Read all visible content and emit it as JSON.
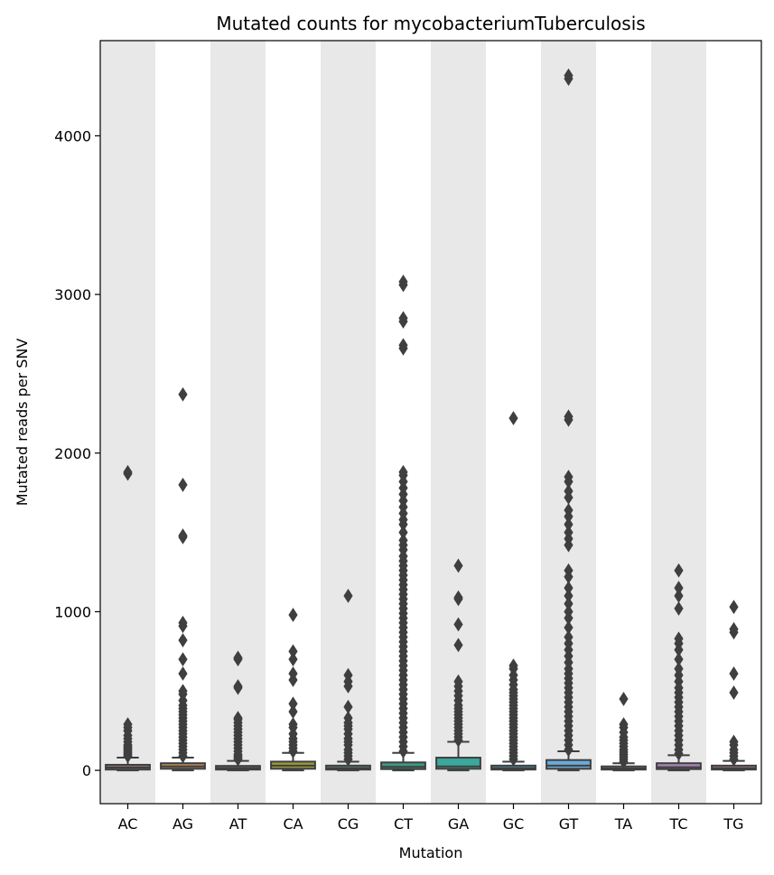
{
  "chart_data": {
    "type": "box",
    "title": "Mutated counts for mycobacteriumTuberculosis",
    "xlabel": "Mutation",
    "ylabel": "Mutated reads per SNV",
    "ylim": [
      -210,
      4600
    ],
    "yticks": [
      0,
      1000,
      2000,
      3000,
      4000
    ],
    "grid": false,
    "alternating_bands": true,
    "band_color": "#e8e8e8",
    "categories": [
      "AC",
      "AG",
      "AT",
      "CA",
      "CG",
      "CT",
      "GA",
      "GC",
      "GT",
      "TA",
      "TC",
      "TG"
    ],
    "series": [
      {
        "category": "AC",
        "color": "#8a7470",
        "min": 0,
        "q1": 5,
        "median": 18,
        "q3": 35,
        "max": 80,
        "outliers": [
          90,
          100,
          110,
          120,
          130,
          140,
          150,
          160,
          180,
          200,
          220,
          250,
          270,
          290,
          1870,
          1880
        ]
      },
      {
        "category": "AG",
        "color": "#b88a5a",
        "min": 0,
        "q1": 10,
        "median": 25,
        "q3": 45,
        "max": 80,
        "outliers": [
          90,
          110,
          130,
          150,
          170,
          190,
          210,
          230,
          250,
          270,
          290,
          310,
          330,
          350,
          370,
          390,
          410,
          440,
          480,
          500,
          610,
          700,
          820,
          910,
          930,
          1470,
          1480,
          1800,
          2370
        ]
      },
      {
        "category": "AT",
        "color": "#7f7f7f",
        "min": 0,
        "q1": 5,
        "median": 15,
        "q3": 28,
        "max": 60,
        "outliers": [
          70,
          80,
          90,
          100,
          120,
          140,
          160,
          180,
          200,
          220,
          240,
          260,
          280,
          300,
          320,
          330,
          520,
          530,
          700,
          710
        ]
      },
      {
        "category": "CA",
        "color": "#9a9a3a",
        "min": 0,
        "q1": 10,
        "median": 30,
        "q3": 55,
        "max": 110,
        "outliers": [
          120,
          140,
          160,
          180,
          200,
          230,
          270,
          290,
          370,
          420,
          570,
          610,
          700,
          750,
          980
        ]
      },
      {
        "category": "CG",
        "color": "#6f8f8a",
        "min": 0,
        "q1": 5,
        "median": 15,
        "q3": 30,
        "max": 55,
        "outliers": [
          70,
          90,
          110,
          130,
          160,
          180,
          200,
          230,
          260,
          280,
          300,
          330,
          400,
          530,
          560,
          600,
          1100
        ]
      },
      {
        "category": "CT",
        "color": "#3a9a84",
        "min": 0,
        "q1": 8,
        "median": 22,
        "q3": 50,
        "max": 110,
        "outliers": [
          120,
          150,
          180,
          210,
          240,
          270,
          300,
          330,
          360,
          390,
          420,
          450,
          480,
          510,
          540,
          570,
          600,
          630,
          660,
          690,
          720,
          750,
          780,
          810,
          840,
          870,
          900,
          930,
          960,
          990,
          1020,
          1050,
          1080,
          1110,
          1140,
          1170,
          1200,
          1230,
          1260,
          1290,
          1320,
          1350,
          1390,
          1420,
          1450,
          1500,
          1550,
          1580,
          1620,
          1660,
          1700,
          1740,
          1780,
          1820,
          1860,
          1880,
          2660,
          2680,
          2830,
          2850,
          3060,
          3080
        ]
      },
      {
        "category": "GA",
        "color": "#3aa89c",
        "min": 0,
        "q1": 10,
        "median": 25,
        "q3": 80,
        "max": 180,
        "outliers": [
          190,
          210,
          230,
          250,
          270,
          290,
          310,
          330,
          350,
          370,
          390,
          410,
          440,
          470,
          500,
          530,
          560,
          790,
          920,
          1080,
          1090,
          1290
        ]
      },
      {
        "category": "GC",
        "color": "#5a9cbc",
        "min": 0,
        "q1": 5,
        "median": 15,
        "q3": 30,
        "max": 55,
        "outliers": [
          70,
          90,
          110,
          130,
          150,
          170,
          190,
          210,
          230,
          250,
          270,
          290,
          310,
          330,
          350,
          370,
          390,
          410,
          430,
          450,
          470,
          490,
          510,
          540,
          570,
          600,
          640,
          660,
          2220
        ]
      },
      {
        "category": "GT",
        "color": "#6aaad8",
        "min": 0,
        "q1": 10,
        "median": 30,
        "q3": 65,
        "max": 120,
        "outliers": [
          130,
          160,
          190,
          220,
          250,
          280,
          310,
          340,
          370,
          400,
          430,
          460,
          490,
          520,
          550,
          580,
          610,
          640,
          680,
          720,
          760,
          800,
          840,
          900,
          960,
          1000,
          1050,
          1100,
          1150,
          1220,
          1260,
          1420,
          1460,
          1500,
          1550,
          1600,
          1640,
          1720,
          1760,
          1820,
          1850,
          2210,
          2230,
          4360,
          4380
        ]
      },
      {
        "category": "TA",
        "color": "#8a8ab0",
        "min": 0,
        "q1": 5,
        "median": 12,
        "q3": 25,
        "max": 45,
        "outliers": [
          55,
          70,
          85,
          100,
          115,
          130,
          150,
          170,
          190,
          210,
          240,
          270,
          290,
          450
        ]
      },
      {
        "category": "TC",
        "color": "#a883b8",
        "min": 0,
        "q1": 8,
        "median": 20,
        "q3": 45,
        "max": 95,
        "outliers": [
          105,
          130,
          160,
          190,
          220,
          250,
          280,
          310,
          340,
          370,
          400,
          430,
          460,
          490,
          520,
          560,
          600,
          640,
          700,
          760,
          800,
          830,
          1020,
          1100,
          1150,
          1260
        ]
      },
      {
        "category": "TG",
        "color": "#c48aaa",
        "min": 0,
        "q1": 5,
        "median": 15,
        "q3": 30,
        "max": 60,
        "outliers": [
          70,
          90,
          110,
          130,
          160,
          180,
          490,
          610,
          870,
          890,
          1030
        ]
      }
    ]
  }
}
